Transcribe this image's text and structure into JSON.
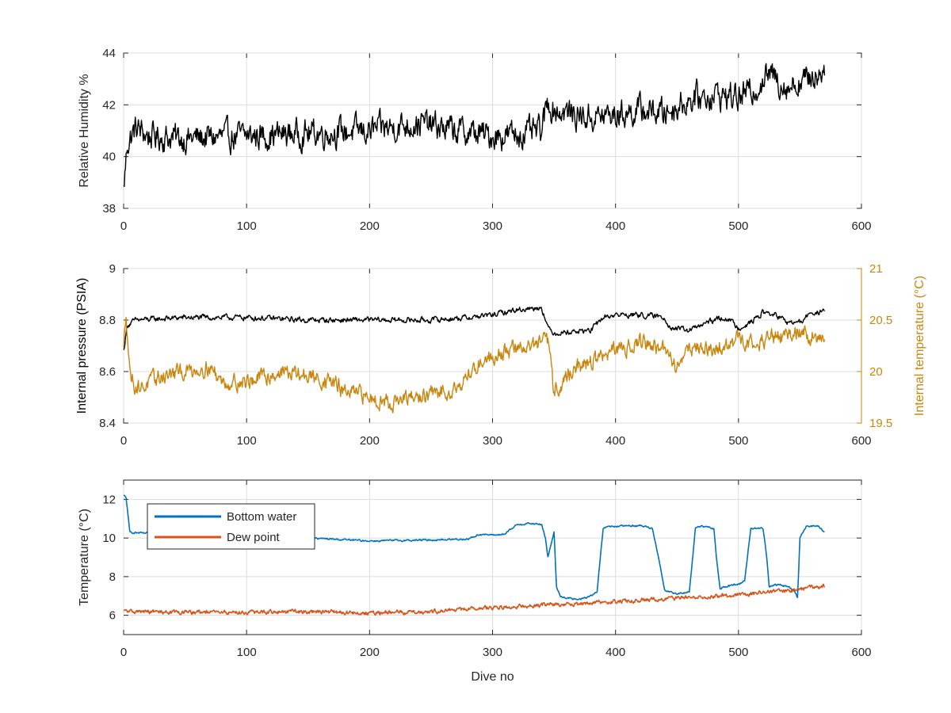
{
  "chart_data": [
    {
      "type": "line",
      "xlabel": "",
      "ylabel": "Relative Humidity %",
      "xlim": [
        0,
        600
      ],
      "ylim": [
        38,
        44
      ],
      "xticks": [
        "0",
        "100",
        "200",
        "300",
        "400",
        "500",
        "600"
      ],
      "yticks": [
        "38",
        "40",
        "42",
        "44"
      ],
      "grid": true,
      "series": [
        {
          "color": "#000000",
          "noise": 0.6,
          "x": [
            0,
            3,
            10,
            20,
            50,
            100,
            150,
            200,
            240,
            270,
            300,
            330,
            340,
            345,
            350,
            380,
            400,
            420,
            440,
            460,
            480,
            500,
            510,
            525,
            540,
            555,
            565,
            570
          ],
          "y": [
            38.7,
            40.5,
            41.1,
            40.8,
            40.7,
            40.8,
            40.9,
            41.0,
            41.3,
            41.0,
            40.8,
            40.9,
            41.0,
            42.1,
            41.8,
            41.5,
            41.6,
            41.8,
            41.7,
            42.2,
            42.4,
            42.3,
            42.5,
            43.2,
            42.7,
            43.0,
            43.2,
            43.5
          ]
        }
      ]
    },
    {
      "type": "line",
      "xlabel": "",
      "ylabel": "Internal pressure (PSIA)",
      "ylabel_right": "Internal temperature (°C)",
      "xlim": [
        0,
        600
      ],
      "ylim": [
        8.4,
        9
      ],
      "ylim_right": [
        19.5,
        21
      ],
      "xticks": [
        "0",
        "100",
        "200",
        "300",
        "400",
        "500",
        "600"
      ],
      "yticks": [
        "8.4",
        "8.6",
        "8.8",
        "9"
      ],
      "yticks_right": [
        "19.5",
        "20",
        "20.5",
        "21"
      ],
      "grid": true,
      "series": [
        {
          "axis": "left",
          "color": "#000000",
          "noise": 0.012,
          "x": [
            0,
            3,
            10,
            50,
            100,
            150,
            200,
            250,
            280,
            300,
            320,
            340,
            345,
            350,
            380,
            390,
            400,
            420,
            440,
            445,
            460,
            480,
            490,
            500,
            510,
            520,
            530,
            540,
            550,
            560,
            570
          ],
          "y": [
            8.68,
            8.78,
            8.8,
            8.81,
            8.81,
            8.8,
            8.8,
            8.8,
            8.81,
            8.82,
            8.84,
            8.85,
            8.77,
            8.75,
            8.76,
            8.81,
            8.82,
            8.82,
            8.81,
            8.77,
            8.76,
            8.8,
            8.81,
            8.77,
            8.79,
            8.83,
            8.82,
            8.79,
            8.79,
            8.83,
            8.83
          ]
        },
        {
          "axis": "right",
          "color": "#c8860e",
          "noise": 0.09,
          "x": [
            0,
            2,
            5,
            10,
            15,
            30,
            70,
            80,
            100,
            130,
            150,
            170,
            180,
            200,
            220,
            240,
            260,
            270,
            280,
            290,
            300,
            310,
            330,
            345,
            350,
            360,
            370,
            380,
            390,
            400,
            410,
            420,
            440,
            450,
            460,
            480,
            490,
            500,
            510,
            520,
            540,
            550,
            560,
            570
          ],
          "y": [
            20.2,
            20.6,
            20.0,
            19.85,
            19.85,
            19.95,
            20.05,
            19.9,
            19.9,
            20.0,
            19.95,
            19.9,
            19.8,
            19.75,
            19.7,
            19.75,
            19.8,
            19.85,
            19.95,
            20.1,
            20.15,
            20.2,
            20.25,
            20.3,
            19.8,
            19.95,
            20.05,
            20.1,
            20.15,
            20.2,
            20.25,
            20.3,
            20.2,
            20.05,
            20.25,
            20.2,
            20.25,
            20.3,
            20.3,
            20.3,
            20.35,
            20.4,
            20.35,
            20.3
          ]
        }
      ]
    },
    {
      "type": "line",
      "xlabel": "Dive no",
      "ylabel": "Temperature (°C)",
      "xlim": [
        0,
        600
      ],
      "ylim": [
        5,
        13
      ],
      "xticks": [
        "0",
        "100",
        "200",
        "300",
        "400",
        "500",
        "600"
      ],
      "yticks": [
        "6",
        "8",
        "10",
        "12"
      ],
      "grid": true,
      "legend": "top-left",
      "series": [
        {
          "name": "Bottom water",
          "color": "#0072bd",
          "noise": 0.05,
          "x": [
            0,
            2,
            5,
            15,
            50,
            100,
            150,
            200,
            250,
            280,
            290,
            300,
            310,
            320,
            330,
            340,
            343,
            345,
            350,
            352,
            355,
            360,
            370,
            380,
            385,
            390,
            395,
            400,
            420,
            430,
            435,
            440,
            450,
            460,
            465,
            470,
            480,
            482,
            485,
            490,
            500,
            505,
            510,
            520,
            523,
            525,
            530,
            540,
            545,
            548,
            550,
            555,
            560,
            565,
            570
          ],
          "y": [
            12.2,
            12.1,
            10.3,
            10.25,
            10.2,
            10.1,
            10.0,
            9.85,
            9.9,
            9.95,
            10.2,
            10.15,
            10.2,
            10.7,
            10.75,
            10.7,
            10.0,
            9.0,
            10.3,
            7.5,
            7.0,
            6.9,
            6.8,
            7.0,
            7.2,
            10.5,
            10.6,
            10.6,
            10.65,
            10.5,
            9.0,
            7.3,
            7.1,
            7.2,
            10.5,
            10.6,
            10.5,
            9.0,
            7.4,
            7.5,
            7.6,
            7.8,
            10.5,
            10.5,
            9.0,
            7.5,
            7.6,
            7.5,
            7.3,
            6.9,
            10.0,
            10.6,
            10.6,
            10.6,
            10.3
          ]
        },
        {
          "name": "Dew point",
          "color": "#d95319",
          "noise": 0.12,
          "x": [
            0,
            50,
            100,
            150,
            200,
            250,
            300,
            350,
            400,
            450,
            500,
            550,
            570
          ],
          "y": [
            6.2,
            6.15,
            6.15,
            6.2,
            6.1,
            6.2,
            6.4,
            6.55,
            6.7,
            6.9,
            7.05,
            7.35,
            7.5
          ]
        }
      ]
    }
  ]
}
